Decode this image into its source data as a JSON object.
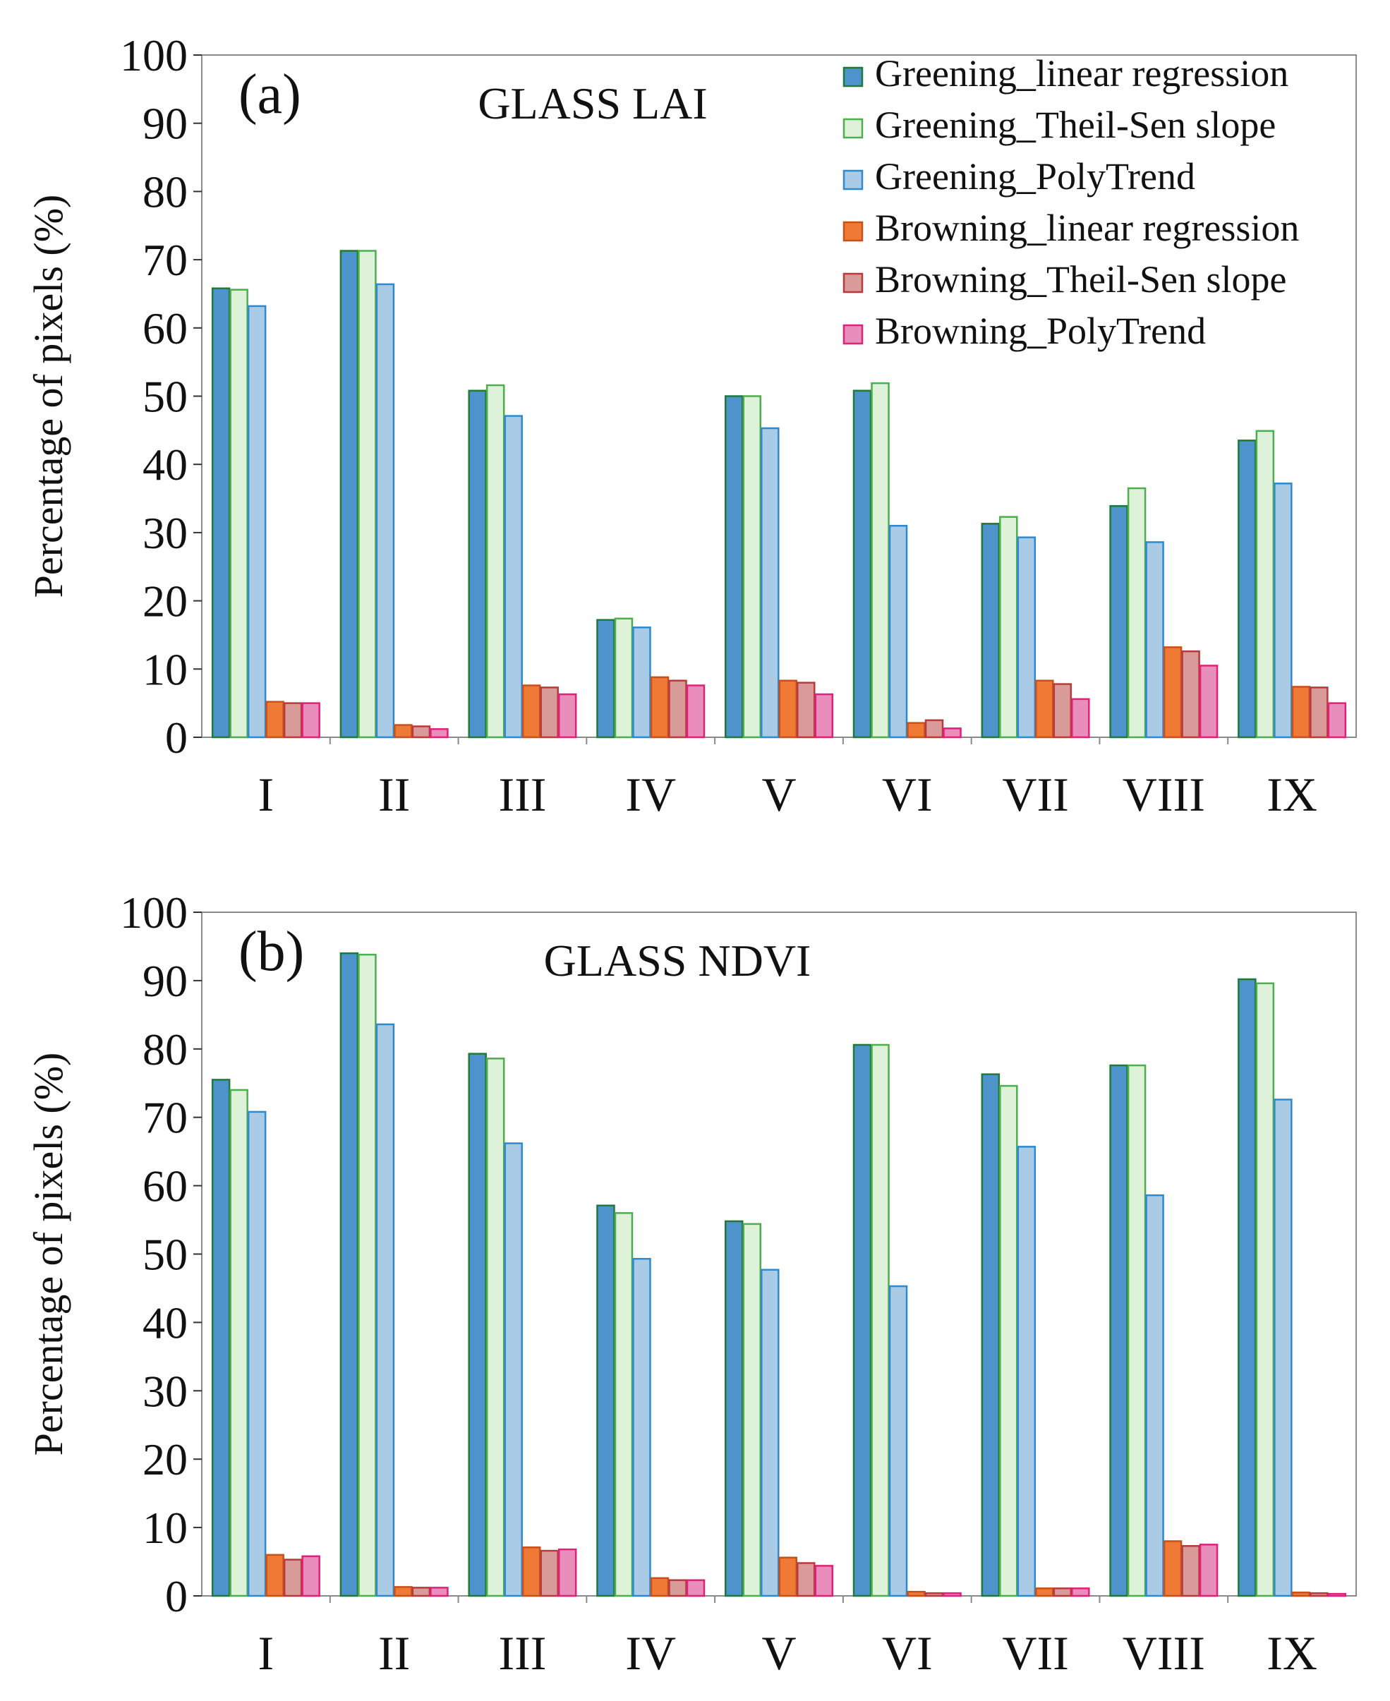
{
  "chart_data": [
    {
      "type": "bar",
      "panel_label": "(a)",
      "title": "GLASS LAI",
      "xlabel": "",
      "ylabel": "Percentage of pixels (%)",
      "ylim": [
        0,
        100
      ],
      "yticks": [
        "0",
        "10",
        "20",
        "30",
        "40",
        "50",
        "60",
        "70",
        "80",
        "90",
        "100"
      ],
      "grid": false,
      "legend_position": "top-right",
      "categories": [
        "I",
        "II",
        "III",
        "IV",
        "V",
        "VI",
        "VII",
        "VIII",
        "IX"
      ],
      "series": [
        {
          "name": "Greening_linear regression",
          "values": [
            65.8,
            71.3,
            50.8,
            17.2,
            50.0,
            50.8,
            31.3,
            33.9,
            43.5
          ]
        },
        {
          "name": "Greening_Theil-Sen slope",
          "values": [
            65.6,
            71.3,
            51.6,
            17.4,
            50.0,
            51.9,
            32.3,
            36.5,
            44.9
          ]
        },
        {
          "name": "Greening_PolyTrend",
          "values": [
            63.2,
            66.4,
            47.1,
            16.1,
            45.3,
            31.0,
            29.3,
            28.6,
            37.2
          ]
        },
        {
          "name": "Browning_linear regression",
          "values": [
            5.2,
            1.8,
            7.6,
            8.8,
            8.3,
            2.1,
            8.3,
            13.2,
            7.4
          ]
        },
        {
          "name": "Browning_Theil-Sen slope",
          "values": [
            5.0,
            1.6,
            7.3,
            8.3,
            8.0,
            2.5,
            7.8,
            12.6,
            7.3
          ]
        },
        {
          "name": "Browning_PolyTrend",
          "values": [
            5.0,
            1.2,
            6.3,
            7.6,
            6.3,
            1.3,
            5.6,
            10.5,
            5.0
          ]
        }
      ]
    },
    {
      "type": "bar",
      "panel_label": "(b)",
      "title": "GLASS NDVI",
      "xlabel": "",
      "ylabel": "Percentage of pixels (%)",
      "ylim": [
        0,
        100
      ],
      "yticks": [
        "0",
        "10",
        "20",
        "30",
        "40",
        "50",
        "60",
        "70",
        "80",
        "90",
        "100"
      ],
      "grid": false,
      "categories": [
        "I",
        "II",
        "III",
        "IV",
        "V",
        "VI",
        "VII",
        "VIII",
        "IX"
      ],
      "series": [
        {
          "name": "Greening_linear regression",
          "values": [
            75.5,
            94.0,
            79.3,
            57.1,
            54.8,
            80.6,
            76.3,
            77.6,
            90.2
          ]
        },
        {
          "name": "Greening_Theil-Sen slope",
          "values": [
            74.0,
            93.8,
            78.6,
            56.0,
            54.4,
            80.6,
            74.6,
            77.6,
            89.6
          ]
        },
        {
          "name": "Greening_PolyTrend",
          "values": [
            70.8,
            83.6,
            66.2,
            49.3,
            47.7,
            45.3,
            65.7,
            58.6,
            72.6
          ]
        },
        {
          "name": "Browning_linear regression",
          "values": [
            6.0,
            1.3,
            7.1,
            2.6,
            5.6,
            0.6,
            1.1,
            8.0,
            0.5
          ]
        },
        {
          "name": "Browning_Theil-Sen slope",
          "values": [
            5.3,
            1.2,
            6.6,
            2.3,
            4.8,
            0.4,
            1.1,
            7.3,
            0.4
          ]
        },
        {
          "name": "Browning_PolyTrend",
          "values": [
            5.8,
            1.2,
            6.8,
            2.3,
            4.4,
            0.4,
            1.1,
            7.5,
            0.3
          ]
        }
      ]
    }
  ],
  "series_colors": [
    {
      "fill": "#4f93cc",
      "stroke": "#1f7a3a"
    },
    {
      "fill": "#ddf2d8",
      "stroke": "#4cae4c"
    },
    {
      "fill": "#a9cbe6",
      "stroke": "#2d8ad0"
    },
    {
      "fill": "#ee7a35",
      "stroke": "#c9501a"
    },
    {
      "fill": "#d99a9a",
      "stroke": "#b83a3a"
    },
    {
      "fill": "#e98dbb",
      "stroke": "#e0207a"
    }
  ]
}
